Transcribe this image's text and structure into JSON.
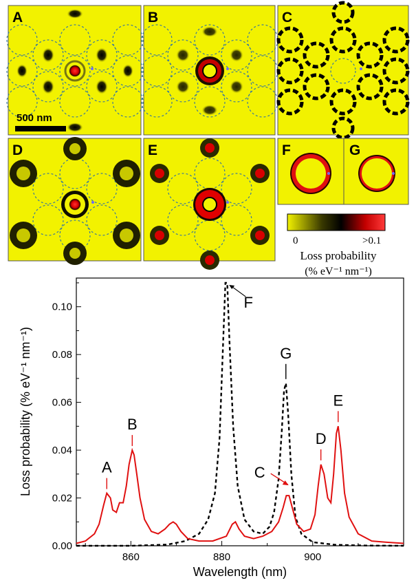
{
  "colors": {
    "background_yellow": "#f2f200",
    "colormap": [
      "#f2f200",
      "#1a1a00",
      "#000000",
      "#c40000",
      "#ff2a2a"
    ],
    "solid_curve": "#e01010",
    "dashed_curve": "#000000",
    "ring_dashes": "#3a7a9a",
    "electron_beam_dot": "#6f6cff"
  },
  "panels": [
    {
      "label": "A",
      "icon": "loss-map-A"
    },
    {
      "label": "B",
      "icon": "loss-map-B"
    },
    {
      "label": "C",
      "icon": "loss-map-C"
    },
    {
      "label": "D",
      "icon": "loss-map-D"
    },
    {
      "label": "E",
      "icon": "loss-map-E"
    },
    {
      "label": "F",
      "icon": "loss-map-F"
    },
    {
      "label": "G",
      "icon": "loss-map-G"
    }
  ],
  "scale_bar": {
    "label": "500 nm"
  },
  "colorbar": {
    "min_label": "0",
    "max_label": ">0.1",
    "title_line1": "Loss probability",
    "title_line2": "(% eV⁻¹ nm⁻¹)"
  },
  "chart_data": {
    "type": "line",
    "xlabel": "Wavelength (nm)",
    "ylabel": "Loss probability (% eV⁻¹ nm⁻¹)",
    "xlim": [
      848,
      920
    ],
    "ylim": [
      0,
      0.112
    ],
    "xticks": [
      860,
      880,
      900
    ],
    "yticks": [
      0.0,
      0.02,
      0.04,
      0.06,
      0.08,
      0.1
    ],
    "ytick_labels": [
      "0.00",
      "0.02",
      "0.04",
      "0.06",
      "0.08",
      "0.10"
    ],
    "grid": false,
    "series": [
      {
        "style": "solid",
        "color": "#e01010",
        "x": [
          848,
          850,
          852,
          853,
          854,
          854.7,
          855.5,
          856,
          856.8,
          857.5,
          858.3,
          859,
          859.6,
          860.3,
          860.7,
          861.3,
          862,
          863,
          864.5,
          866,
          867.5,
          868.5,
          869.3,
          870,
          871,
          872.5,
          875,
          878,
          881,
          882.3,
          883,
          883.8,
          885,
          887,
          889,
          891,
          892.5,
          893.5,
          894.2,
          894.8,
          895.5,
          896.5,
          898,
          899.5,
          900.5,
          901.2,
          901.8,
          902.5,
          903.3,
          904,
          904.6,
          905.2,
          905.6,
          906.2,
          907,
          908,
          910,
          913,
          916,
          920
        ],
        "y": [
          0.001,
          0.002,
          0.005,
          0.009,
          0.017,
          0.022,
          0.02,
          0.015,
          0.014,
          0.018,
          0.018,
          0.025,
          0.034,
          0.04,
          0.038,
          0.03,
          0.02,
          0.011,
          0.006,
          0.005,
          0.007,
          0.009,
          0.01,
          0.009,
          0.006,
          0.003,
          0.002,
          0.002,
          0.004,
          0.009,
          0.01,
          0.007,
          0.004,
          0.003,
          0.004,
          0.006,
          0.01,
          0.016,
          0.021,
          0.021,
          0.016,
          0.009,
          0.006,
          0.007,
          0.013,
          0.025,
          0.034,
          0.03,
          0.02,
          0.018,
          0.03,
          0.047,
          0.05,
          0.04,
          0.022,
          0.012,
          0.005,
          0.002,
          0.0015,
          0.001
        ]
      },
      {
        "style": "dashed",
        "color": "#000000",
        "x": [
          848,
          860,
          868,
          872,
          875,
          877,
          878.5,
          879.5,
          880.3,
          880.8,
          881.2,
          881.7,
          882.5,
          883.5,
          885,
          887,
          889,
          890.5,
          891.5,
          892.5,
          893.2,
          893.7,
          894.1,
          894.6,
          895.3,
          896.2,
          897.5,
          900,
          905,
          912,
          920
        ],
        "y": [
          0.0,
          0.0,
          0.0005,
          0.002,
          0.005,
          0.011,
          0.022,
          0.045,
          0.085,
          0.11,
          0.11,
          0.085,
          0.05,
          0.025,
          0.011,
          0.006,
          0.005,
          0.008,
          0.014,
          0.028,
          0.048,
          0.065,
          0.068,
          0.055,
          0.03,
          0.012,
          0.005,
          0.0015,
          0.0004,
          0.0001,
          0.0
        ]
      }
    ],
    "peak_labels": [
      {
        "text": "A",
        "x": 854.7,
        "y": 0.022,
        "color": "#e01010"
      },
      {
        "text": "B",
        "x": 860.3,
        "y": 0.04,
        "color": "#e01010"
      },
      {
        "text": "C",
        "x": 895.0,
        "y": 0.021,
        "color": "#e01010"
      },
      {
        "text": "D",
        "x": 901.8,
        "y": 0.034,
        "color": "#e01010"
      },
      {
        "text": "E",
        "x": 905.6,
        "y": 0.05,
        "color": "#e01010"
      },
      {
        "text": "F",
        "x": 881.0,
        "y": 0.11,
        "color": "#000000"
      },
      {
        "text": "G",
        "x": 894.1,
        "y": 0.068,
        "color": "#000000"
      }
    ]
  }
}
